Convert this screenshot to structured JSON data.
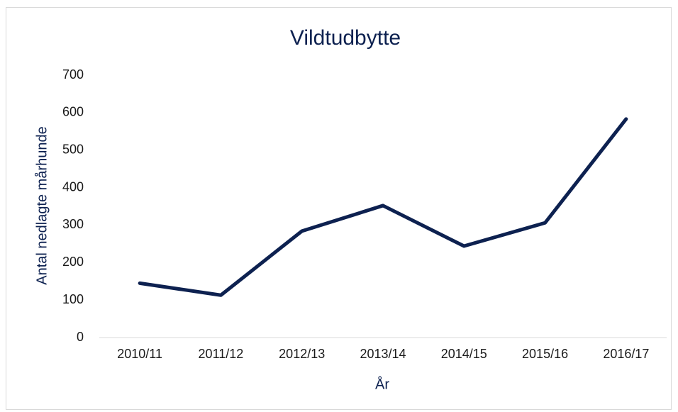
{
  "chart_data": {
    "type": "line",
    "title": "Vildtudbytte",
    "xlabel": "År",
    "ylabel": "Antal nedlagte mårhunde",
    "categories": [
      "2010/11",
      "2011/12",
      "2012/13",
      "2013/14",
      "2014/15",
      "2015/16",
      "2016/17"
    ],
    "series": [
      {
        "name": "Vildtudbytte",
        "color": "#0d2150",
        "values": [
          145,
          113,
          284,
          352,
          244,
          306,
          583
        ]
      }
    ],
    "ylim": [
      0,
      700
    ],
    "yticks": [
      0,
      100,
      200,
      300,
      400,
      500,
      600,
      700
    ],
    "grid": false
  }
}
